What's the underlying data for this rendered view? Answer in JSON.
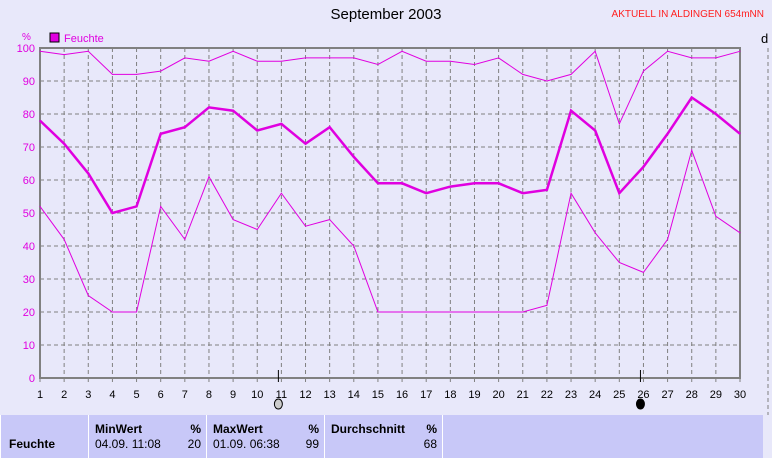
{
  "header": {
    "title": "September 2003",
    "subtitle": "AKTUELL IN ALDINGEN 654mNN"
  },
  "chart_data": {
    "type": "line",
    "ylabel": "%",
    "legend": "Feuchte",
    "legend_placement": "top-left",
    "ylim": [
      0,
      100
    ],
    "yticks": [
      0,
      10,
      20,
      30,
      40,
      50,
      60,
      70,
      80,
      90,
      100
    ],
    "x": [
      1,
      2,
      3,
      4,
      5,
      6,
      7,
      8,
      9,
      10,
      11,
      12,
      13,
      14,
      15,
      16,
      17,
      18,
      19,
      20,
      21,
      22,
      23,
      24,
      25,
      26,
      27,
      28,
      29,
      30
    ],
    "grid": true,
    "color": "#e000e0",
    "series": [
      {
        "values": [
          99,
          98,
          99,
          92,
          92,
          93,
          97,
          96,
          99,
          96,
          96,
          97,
          97,
          97,
          95,
          99,
          96,
          96,
          95,
          97,
          92,
          90,
          92,
          99,
          77,
          93,
          99,
          97,
          97,
          99
        ]
      },
      {
        "values": [
          78,
          71,
          62,
          50,
          52,
          74,
          76,
          82,
          81,
          75,
          77,
          71,
          76,
          67,
          59,
          59,
          56,
          58,
          59,
          59,
          56,
          57,
          81,
          75,
          56,
          64,
          74,
          85,
          80,
          74
        ]
      },
      {
        "values": [
          52,
          42,
          25,
          20,
          20,
          52,
          42,
          61,
          48,
          45,
          56,
          46,
          48,
          40,
          20,
          20,
          20,
          20,
          20,
          20,
          20,
          22,
          56,
          44,
          35,
          32,
          42,
          69,
          49,
          44
        ]
      }
    ],
    "moon_phases": [
      {
        "day": 11,
        "phase": "full-moon"
      },
      {
        "day": 26,
        "phase": "new-moon"
      }
    ]
  },
  "stats": {
    "row_label": "Feuchte",
    "min": {
      "header": "MinWert",
      "unit": "%",
      "time": "04.09.  11:08",
      "value": "20"
    },
    "max": {
      "header": "MaxWert",
      "unit": "%",
      "time": "01.09.  06:38",
      "value": "99"
    },
    "avg": {
      "header": "Durchschnitt",
      "unit": "%",
      "value": "68"
    }
  },
  "right_axis_label": "d"
}
